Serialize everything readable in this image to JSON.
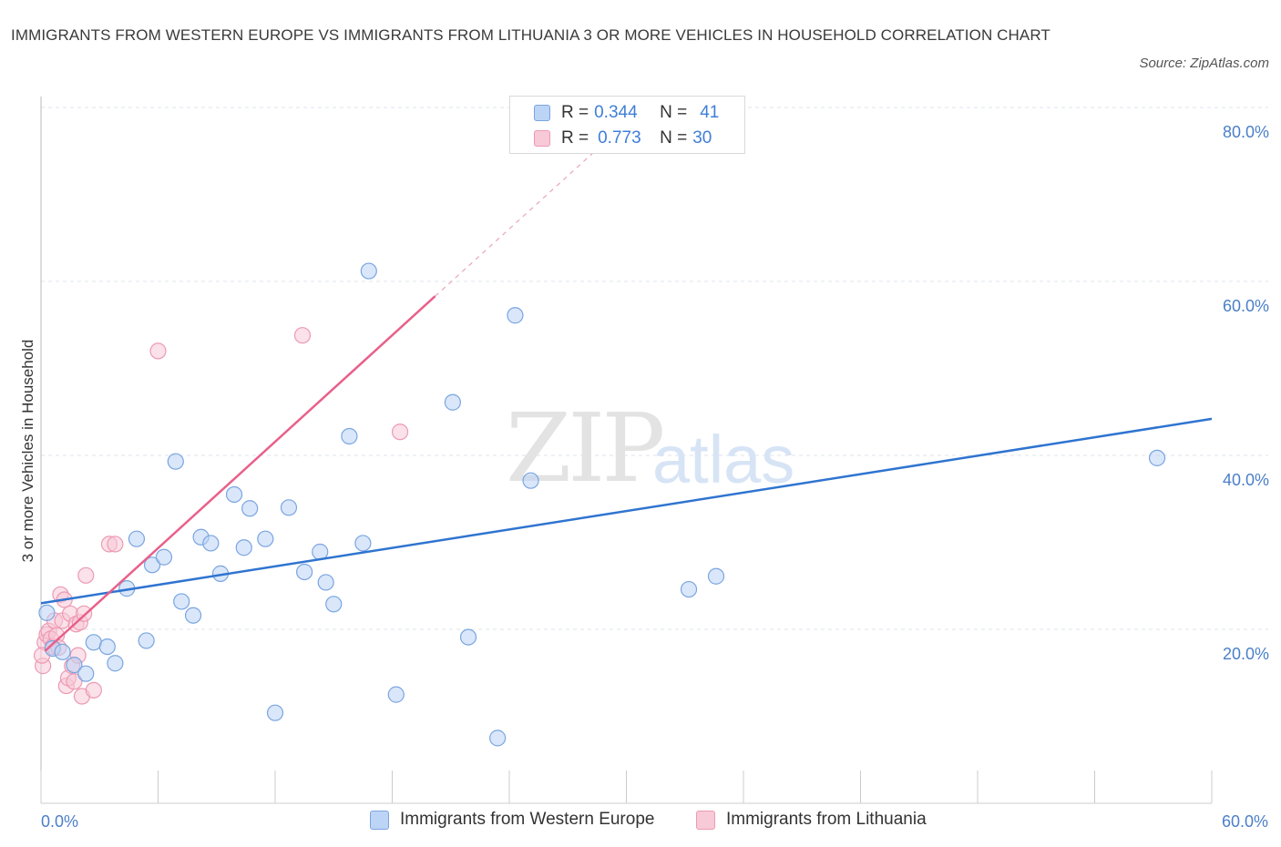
{
  "title": "IMMIGRANTS FROM WESTERN EUROPE VS IMMIGRANTS FROM LITHUANIA 3 OR MORE VEHICLES IN HOUSEHOLD CORRELATION CHART",
  "source": "Source: ZipAtlas.com",
  "watermark": {
    "zip": "ZIP",
    "atlas": "atlas"
  },
  "legend_top": [
    {
      "r_label": "R =",
      "r_value": "0.344",
      "n_label": "N =",
      "n_value": "41"
    },
    {
      "r_label": "R =",
      "r_value": "0.773",
      "n_label": "N =",
      "n_value": "30"
    }
  ],
  "legend_bottom": [
    {
      "label": "Immigrants from Western Europe"
    },
    {
      "label": "Immigrants from Lithuania"
    }
  ],
  "colors": {
    "blue_fill": "#bcd4f5",
    "blue_stroke": "#7aa5e0",
    "blue_line": "#2f74d0",
    "pink_fill": "#f8c9d7",
    "pink_stroke": "#ec9ab3",
    "pink_line": "#e8608a",
    "tick": "#4a7fc9",
    "grid": "#dde3ea"
  },
  "chart_data": {
    "type": "scatter",
    "title": "IMMIGRANTS FROM WESTERN EUROPE VS IMMIGRANTS FROM LITHUANIA 3 OR MORE VEHICLES IN HOUSEHOLD CORRELATION CHART",
    "xlabel": "",
    "ylabel": "3 or more Vehicles in Household",
    "xlim": [
      0,
      60
    ],
    "ylim": [
      0,
      80
    ],
    "x_tick_labels": [
      {
        "value": 0,
        "label": "0.0%"
      },
      {
        "value": 60,
        "label": "60.0%"
      }
    ],
    "y_tick_labels": [
      {
        "value": 20,
        "label": "20.0%"
      },
      {
        "value": 40,
        "label": "40.0%"
      },
      {
        "value": 60,
        "label": "60.0%"
      },
      {
        "value": 80,
        "label": "80.0%"
      }
    ],
    "x_minor_ticks": [
      0,
      6,
      12,
      18,
      24,
      30,
      36,
      42,
      48,
      54,
      60
    ],
    "grid": true,
    "series": [
      {
        "name": "Immigrants from Western Europe",
        "R": 0.344,
        "N": 41,
        "points": [
          [
            0.3,
            21.9
          ],
          [
            0.6,
            17.8
          ],
          [
            1.1,
            17.4
          ],
          [
            1.7,
            15.9
          ],
          [
            2.3,
            14.9
          ],
          [
            2.7,
            18.5
          ],
          [
            3.4,
            18.0
          ],
          [
            3.8,
            16.1
          ],
          [
            4.4,
            24.7
          ],
          [
            4.9,
            30.4
          ],
          [
            5.4,
            18.7
          ],
          [
            5.7,
            27.4
          ],
          [
            6.3,
            28.3
          ],
          [
            7.2,
            23.2
          ],
          [
            6.9,
            39.3
          ],
          [
            7.8,
            21.6
          ],
          [
            8.2,
            30.6
          ],
          [
            8.7,
            29.9
          ],
          [
            9.2,
            26.4
          ],
          [
            9.9,
            35.5
          ],
          [
            10.4,
            29.4
          ],
          [
            10.7,
            33.9
          ],
          [
            11.5,
            30.4
          ],
          [
            12.0,
            10.4
          ],
          [
            12.7,
            34.0
          ],
          [
            13.5,
            26.6
          ],
          [
            14.3,
            28.9
          ],
          [
            14.6,
            25.4
          ],
          [
            15.0,
            22.9
          ],
          [
            15.8,
            42.2
          ],
          [
            16.5,
            29.9
          ],
          [
            16.8,
            61.2
          ],
          [
            18.2,
            12.5
          ],
          [
            21.1,
            46.1
          ],
          [
            21.9,
            19.1
          ],
          [
            23.4,
            7.5
          ],
          [
            24.3,
            56.1
          ],
          [
            25.1,
            37.1
          ],
          [
            33.2,
            24.6
          ],
          [
            34.6,
            26.1
          ],
          [
            57.2,
            39.7
          ]
        ],
        "trendline": {
          "x": [
            0,
            60
          ],
          "y": [
            23.0,
            44.2
          ]
        }
      },
      {
        "name": "Immigrants from Lithuania",
        "R": 0.773,
        "N": 30,
        "points": [
          [
            0.1,
            15.8
          ],
          [
            0.2,
            18.5
          ],
          [
            0.3,
            19.4
          ],
          [
            0.4,
            19.8
          ],
          [
            0.5,
            18.9
          ],
          [
            0.6,
            18.0
          ],
          [
            0.7,
            21.0
          ],
          [
            0.8,
            19.3
          ],
          [
            0.9,
            17.9
          ],
          [
            1.0,
            24.0
          ],
          [
            1.1,
            21.0
          ],
          [
            1.2,
            23.4
          ],
          [
            1.3,
            13.5
          ],
          [
            1.4,
            14.4
          ],
          [
            1.5,
            21.8
          ],
          [
            1.6,
            15.8
          ],
          [
            1.7,
            14.0
          ],
          [
            1.8,
            20.6
          ],
          [
            1.9,
            17.0
          ],
          [
            2.0,
            20.8
          ],
          [
            2.1,
            12.3
          ],
          [
            2.2,
            21.8
          ],
          [
            2.3,
            26.2
          ],
          [
            2.7,
            13.0
          ],
          [
            3.5,
            29.8
          ],
          [
            3.8,
            29.8
          ],
          [
            6.0,
            52.0
          ],
          [
            13.4,
            53.8
          ],
          [
            18.4,
            42.7
          ],
          [
            0.05,
            17.0
          ]
        ],
        "trendline": {
          "x": [
            0.2,
            20.2
          ],
          "y": [
            17.5,
            58.3
          ]
        },
        "trendline_extension": {
          "x": [
            20.2,
            28.5
          ],
          "y": [
            58.3,
            75.2
          ]
        }
      }
    ]
  }
}
